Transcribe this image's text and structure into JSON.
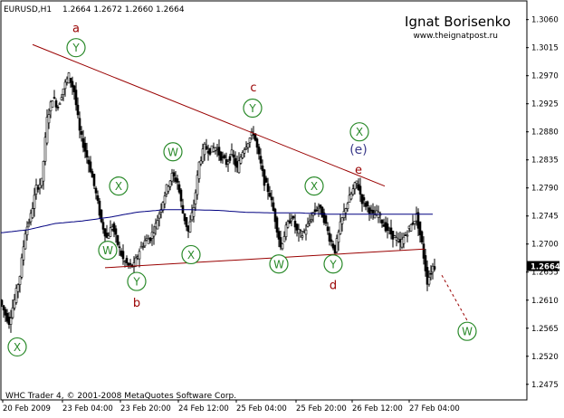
{
  "header": {
    "symbol": "EURUSD,H1",
    "ohlc": "1.2664 1.2672 1.2660 1.2664"
  },
  "author": {
    "name": "Ignat Borisenko",
    "site": "www.theignatpost.ru"
  },
  "footer": {
    "copyright": "WHC Trader 4, © 2001-2008 MetaQuotes Software Corp."
  },
  "price_tag": "1.2664",
  "colors": {
    "trendline": "#990000",
    "wave_circle": "#2a8a2a",
    "wave_letter": "#990000",
    "e_label_bracket": "#3a3a8a",
    "moving_average": "#000080",
    "candles": "#000000",
    "axis": "#000000"
  },
  "chart_data": {
    "type": "candlestick",
    "title": "EURUSD,H1",
    "ylim": [
      1.245,
      1.309
    ],
    "y_ticks": [
      "1.3060",
      "1.3015",
      "1.2970",
      "1.2925",
      "1.2880",
      "1.2835",
      "1.2790",
      "1.2745",
      "1.2700",
      "1.2655",
      "1.2610",
      "1.2565",
      "1.2520",
      "1.2475"
    ],
    "x_ticks": [
      "20 Feb 2009",
      "23 Feb 04:00",
      "23 Feb 20:00",
      "24 Feb 12:00",
      "25 Feb 04:00",
      "25 Feb 20:00",
      "26 Feb 12:00",
      "27 Feb 04:00"
    ],
    "last_price": 1.2664,
    "moving_average_series": [
      {
        "i": 0,
        "price": 1.2718
      },
      {
        "i": 30,
        "price": 1.2723
      },
      {
        "i": 60,
        "price": 1.2733
      },
      {
        "i": 90,
        "price": 1.2737
      },
      {
        "i": 120,
        "price": 1.2743
      },
      {
        "i": 150,
        "price": 1.2751
      },
      {
        "i": 180,
        "price": 1.2755
      },
      {
        "i": 210,
        "price": 1.2755
      },
      {
        "i": 240,
        "price": 1.2754
      },
      {
        "i": 270,
        "price": 1.2751
      },
      {
        "i": 300,
        "price": 1.275
      },
      {
        "i": 330,
        "price": 1.275
      },
      {
        "i": 360,
        "price": 1.2748
      },
      {
        "i": 390,
        "price": 1.2748
      }
    ],
    "price_path": [
      {
        "i": 0,
        "price": 1.261
      },
      {
        "i": 5,
        "price": 1.259
      },
      {
        "i": 10,
        "price": 1.2575
      },
      {
        "i": 16,
        "price": 1.261
      },
      {
        "i": 22,
        "price": 1.265
      },
      {
        "i": 28,
        "price": 1.272
      },
      {
        "i": 34,
        "price": 1.2745
      },
      {
        "i": 40,
        "price": 1.279
      },
      {
        "i": 46,
        "price": 1.28
      },
      {
        "i": 52,
        "price": 1.29
      },
      {
        "i": 58,
        "price": 1.2935
      },
      {
        "i": 64,
        "price": 1.292
      },
      {
        "i": 70,
        "price": 1.295
      },
      {
        "i": 76,
        "price": 1.297
      },
      {
        "i": 82,
        "price": 1.2945
      },
      {
        "i": 88,
        "price": 1.288
      },
      {
        "i": 94,
        "price": 1.285
      },
      {
        "i": 100,
        "price": 1.282
      },
      {
        "i": 106,
        "price": 1.278
      },
      {
        "i": 112,
        "price": 1.2735
      },
      {
        "i": 118,
        "price": 1.271
      },
      {
        "i": 124,
        "price": 1.273
      },
      {
        "i": 130,
        "price": 1.27
      },
      {
        "i": 136,
        "price": 1.2675
      },
      {
        "i": 142,
        "price": 1.2665
      },
      {
        "i": 148,
        "price": 1.2665
      },
      {
        "i": 154,
        "price": 1.269
      },
      {
        "i": 160,
        "price": 1.2705
      },
      {
        "i": 166,
        "price": 1.271
      },
      {
        "i": 172,
        "price": 1.273
      },
      {
        "i": 178,
        "price": 1.276
      },
      {
        "i": 184,
        "price": 1.279
      },
      {
        "i": 190,
        "price": 1.281
      },
      {
        "i": 196,
        "price": 1.28
      },
      {
        "i": 202,
        "price": 1.275
      },
      {
        "i": 208,
        "price": 1.272
      },
      {
        "i": 214,
        "price": 1.276
      },
      {
        "i": 220,
        "price": 1.283
      },
      {
        "i": 226,
        "price": 1.2855
      },
      {
        "i": 232,
        "price": 1.285
      },
      {
        "i": 238,
        "price": 1.2855
      },
      {
        "i": 244,
        "price": 1.284
      },
      {
        "i": 250,
        "price": 1.283
      },
      {
        "i": 256,
        "price": 1.2845
      },
      {
        "i": 262,
        "price": 1.282
      },
      {
        "i": 268,
        "price": 1.285
      },
      {
        "i": 274,
        "price": 1.2865
      },
      {
        "i": 280,
        "price": 1.288
      },
      {
        "i": 286,
        "price": 1.284
      },
      {
        "i": 292,
        "price": 1.28
      },
      {
        "i": 298,
        "price": 1.278
      },
      {
        "i": 304,
        "price": 1.274
      },
      {
        "i": 310,
        "price": 1.2695
      },
      {
        "i": 316,
        "price": 1.2725
      },
      {
        "i": 322,
        "price": 1.2745
      },
      {
        "i": 328,
        "price": 1.272
      },
      {
        "i": 334,
        "price": 1.2715
      },
      {
        "i": 340,
        "price": 1.273
      },
      {
        "i": 346,
        "price": 1.275
      },
      {
        "i": 352,
        "price": 1.276
      },
      {
        "i": 358,
        "price": 1.274
      },
      {
        "i": 364,
        "price": 1.271
      },
      {
        "i": 370,
        "price": 1.269
      },
      {
        "i": 376,
        "price": 1.273
      },
      {
        "i": 382,
        "price": 1.276
      },
      {
        "i": 388,
        "price": 1.278
      },
      {
        "i": 394,
        "price": 1.28
      },
      {
        "i": 400,
        "price": 1.277
      },
      {
        "i": 406,
        "price": 1.276
      },
      {
        "i": 412,
        "price": 1.2745
      },
      {
        "i": 418,
        "price": 1.275
      },
      {
        "i": 424,
        "price": 1.273
      },
      {
        "i": 430,
        "price": 1.272
      },
      {
        "i": 436,
        "price": 1.271
      },
      {
        "i": 442,
        "price": 1.27
      },
      {
        "i": 448,
        "price": 1.2715
      },
      {
        "i": 454,
        "price": 1.273
      },
      {
        "i": 460,
        "price": 1.2745
      },
      {
        "i": 466,
        "price": 1.27
      },
      {
        "i": 472,
        "price": 1.264
      },
      {
        "i": 478,
        "price": 1.2664
      }
    ],
    "upper_trendline": [
      {
        "i": 35,
        "price": 1.302
      },
      {
        "i": 424,
        "price": 1.2793
      }
    ],
    "lower_trendline": [
      {
        "i": 115,
        "price": 1.2662
      },
      {
        "i": 468,
        "price": 1.2692
      }
    ],
    "projection": [
      {
        "i": 487,
        "price": 1.265
      },
      {
        "i": 516,
        "price": 1.2575
      }
    ],
    "wave_labels": [
      {
        "text": "X",
        "i": 18,
        "price": 1.2535
      },
      {
        "text": "Y",
        "i": 83,
        "price": 1.3015
      },
      {
        "text": "W",
        "i": 118,
        "price": 1.269
      },
      {
        "text": "X",
        "i": 130,
        "price": 1.2793
      },
      {
        "text": "Y",
        "i": 150,
        "price": 1.264
      },
      {
        "text": "W",
        "i": 190,
        "price": 1.2848
      },
      {
        "text": "X",
        "i": 210,
        "price": 1.2683
      },
      {
        "text": "Y",
        "i": 278,
        "price": 1.2918
      },
      {
        "text": "W",
        "i": 307,
        "price": 1.2668
      },
      {
        "text": "X",
        "i": 346,
        "price": 1.2793
      },
      {
        "text": "Y",
        "i": 367,
        "price": 1.2668
      },
      {
        "text": "X",
        "i": 396,
        "price": 1.288
      },
      {
        "text": "W",
        "i": 515,
        "price": 1.256
      }
    ],
    "wave_letters": [
      {
        "text": "a",
        "i": 83,
        "price": 1.3047
      },
      {
        "text": "b",
        "i": 150,
        "price": 1.2607
      },
      {
        "text": "c",
        "i": 279,
        "price": 1.2952
      },
      {
        "text": "d",
        "i": 367,
        "price": 1.2635
      },
      {
        "text": "e",
        "i": 395,
        "price": 1.282
      },
      {
        "text": "(e)",
        "i": 395,
        "price": 1.2852
      }
    ]
  }
}
